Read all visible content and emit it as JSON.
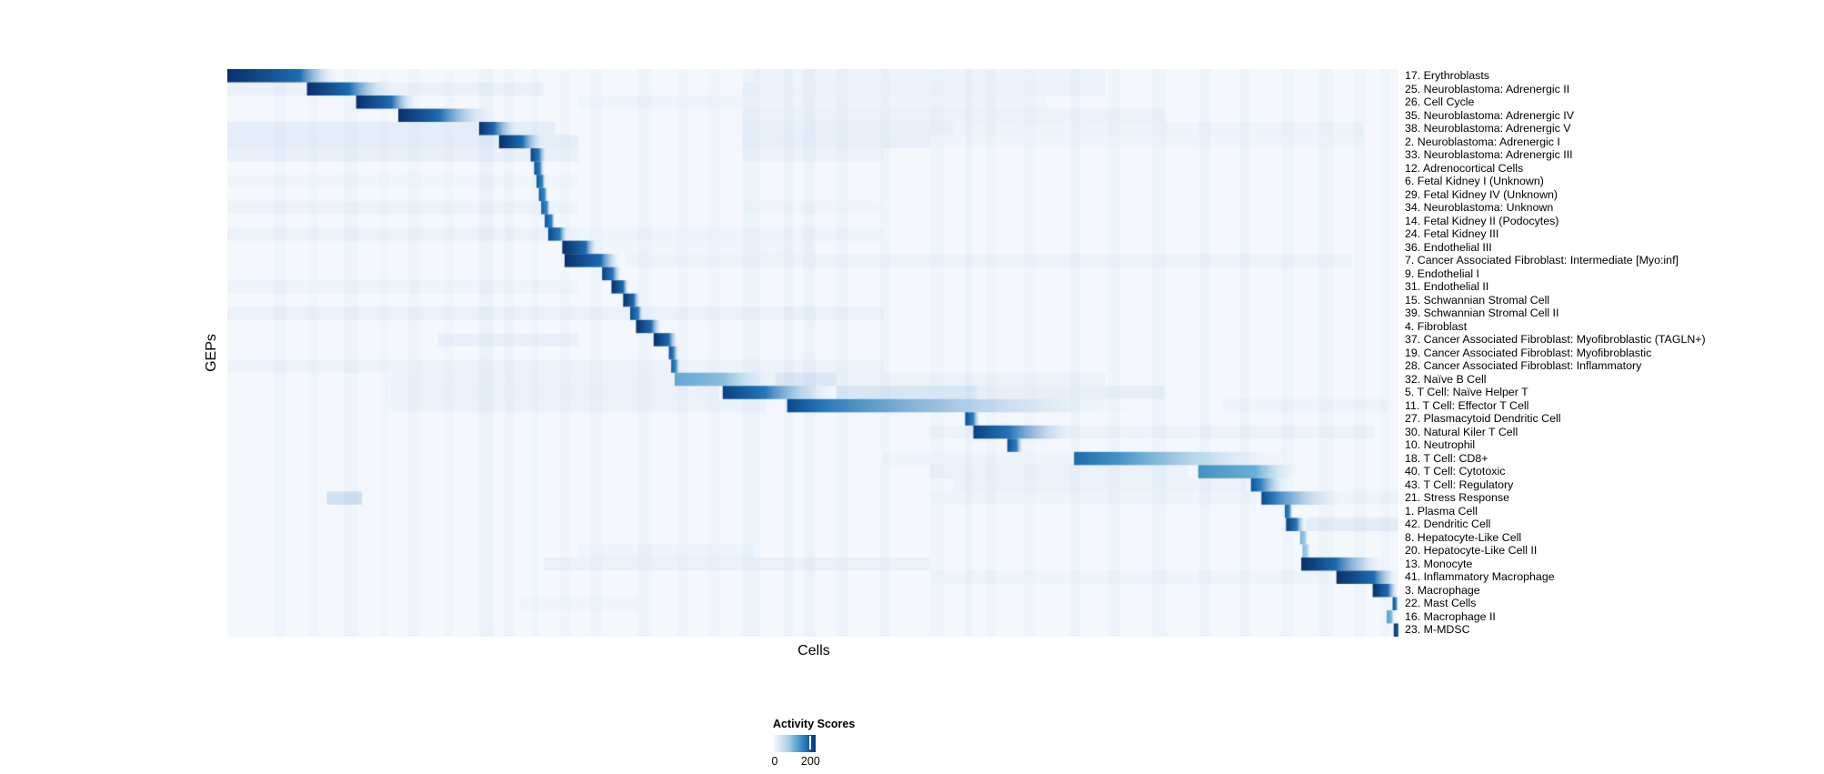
{
  "legend": {
    "title": "Activity Scores",
    "min_label": "0",
    "max_label": "200",
    "tick_fraction": 0.88
  },
  "chart_data": {
    "type": "heatmap",
    "title": "",
    "xlabel": "Cells",
    "ylabel": "GEPs",
    "value_name": "Activity Scores",
    "colorbar": {
      "title": "Activity Scores",
      "min": 0,
      "max": 200,
      "ticks": [
        0,
        200
      ]
    },
    "colormap": "Blues",
    "colormap_stops": [
      [
        0.0,
        "#f7fbff"
      ],
      [
        0.13,
        "#deebf7"
      ],
      [
        0.26,
        "#c6dbef"
      ],
      [
        0.39,
        "#9ecae1"
      ],
      [
        0.52,
        "#6baed6"
      ],
      [
        0.65,
        "#4292c6"
      ],
      [
        0.78,
        "#2171b5"
      ],
      [
        0.9,
        "#08519c"
      ],
      [
        1.0,
        "#08306b"
      ]
    ],
    "colors": {
      "background": "#f4f8fd",
      "band": "#8fb8dd",
      "haze": "#7caad7",
      "darkest": "#08306b"
    },
    "layout": {
      "grid": false,
      "legend_position": "bottom",
      "x_ticks_visible": false,
      "y_ticks_visible": false
    },
    "background_bands": [
      [
        0.04,
        0.01,
        0.05
      ],
      [
        0.07,
        0.008,
        0.04
      ],
      [
        0.1,
        0.012,
        0.06
      ],
      [
        0.13,
        0.008,
        0.04
      ],
      [
        0.155,
        0.01,
        0.05
      ],
      [
        0.185,
        0.008,
        0.04
      ],
      [
        0.215,
        0.012,
        0.09
      ],
      [
        0.237,
        0.008,
        0.06
      ],
      [
        0.26,
        0.006,
        0.05
      ],
      [
        0.285,
        0.008,
        0.04
      ],
      [
        0.31,
        0.01,
        0.04
      ],
      [
        0.35,
        0.012,
        0.05
      ],
      [
        0.385,
        0.008,
        0.04
      ],
      [
        0.41,
        0.01,
        0.04
      ],
      [
        0.44,
        0.015,
        0.06
      ],
      [
        0.475,
        0.008,
        0.07
      ],
      [
        0.492,
        0.01,
        0.09
      ],
      [
        0.52,
        0.01,
        0.05
      ],
      [
        0.558,
        0.008,
        0.05
      ],
      [
        0.6,
        0.012,
        0.04
      ],
      [
        0.63,
        0.006,
        0.07
      ],
      [
        0.648,
        0.008,
        0.05
      ],
      [
        0.68,
        0.01,
        0.04
      ],
      [
        0.72,
        0.008,
        0.06
      ],
      [
        0.752,
        0.01,
        0.05
      ],
      [
        0.79,
        0.012,
        0.05
      ],
      [
        0.83,
        0.01,
        0.06
      ],
      [
        0.865,
        0.008,
        0.06
      ],
      [
        0.9,
        0.01,
        0.05
      ],
      [
        0.932,
        0.012,
        0.05
      ],
      [
        0.962,
        0.01,
        0.05
      ],
      [
        0.985,
        0.008,
        0.05
      ]
    ],
    "rows": [
      {
        "label": "17. Erythroblasts",
        "b": [
          0.0,
          0.062,
          0.095,
          1.0
        ],
        "h": [
          [
            0.45,
            0.75,
            0.05
          ]
        ]
      },
      {
        "label": "25. Neuroblastoma: Adrenergic II",
        "b": [
          0.068,
          0.104,
          0.14,
          1.0
        ],
        "h": [
          [
            0.0,
            0.27,
            0.08
          ],
          [
            0.44,
            0.75,
            0.06
          ]
        ]
      },
      {
        "label": "26. Cell Cycle",
        "b": [
          0.11,
          0.14,
          0.162,
          1.0
        ],
        "h": [
          [
            0.3,
            0.7,
            0.05
          ]
        ]
      },
      {
        "label": "35. Neuroblastoma: Adrenergic IV",
        "b": [
          0.146,
          0.181,
          0.228,
          1.0
        ],
        "h": [
          [
            0.44,
            0.8,
            0.07
          ]
        ]
      },
      {
        "label": "38. Neuroblastoma: Adrenergic V",
        "b": [
          0.215,
          0.228,
          0.248,
          1.0
        ],
        "h": [
          [
            0.0,
            0.28,
            0.12
          ],
          [
            0.44,
            0.62,
            0.09
          ],
          [
            0.62,
            0.97,
            0.05
          ]
        ]
      },
      {
        "label": "2. Neuroblastoma: Adrenergic I",
        "b": [
          0.232,
          0.252,
          0.27,
          1.0
        ],
        "h": [
          [
            0.0,
            0.3,
            0.13
          ],
          [
            0.44,
            0.6,
            0.1
          ],
          [
            0.6,
            0.97,
            0.04
          ]
        ]
      },
      {
        "label": "33. Neuroblastoma: Adrenergic III",
        "b": [
          0.259,
          0.266,
          0.273,
          0.95
        ],
        "h": [
          [
            0.0,
            0.3,
            0.09
          ],
          [
            0.44,
            0.56,
            0.06
          ]
        ]
      },
      {
        "label": "12. Adrenocortical Cells",
        "b": [
          0.262,
          0.267,
          0.271,
          0.9
        ],
        "h": []
      },
      {
        "label": "6. Fetal Kidney I (Unknown)",
        "b": [
          0.264,
          0.269,
          0.272,
          0.88
        ],
        "h": [
          [
            0.0,
            0.3,
            0.04
          ]
        ]
      },
      {
        "label": "29. Fetal Kidney IV (Unknown)",
        "b": [
          0.266,
          0.271,
          0.274,
          0.85
        ],
        "h": []
      },
      {
        "label": "34. Neuroblastoma: Unknown",
        "b": [
          0.268,
          0.273,
          0.276,
          0.85
        ],
        "h": [
          [
            0.0,
            0.3,
            0.06
          ],
          [
            0.44,
            0.56,
            0.04
          ]
        ]
      },
      {
        "label": "14. Fetal Kidney II (Podocytes)",
        "b": [
          0.271,
          0.277,
          0.28,
          0.88
        ],
        "h": []
      },
      {
        "label": "24. Fetal Kidney III",
        "b": [
          0.274,
          0.284,
          0.291,
          0.92
        ],
        "h": [
          [
            0.0,
            0.3,
            0.07
          ],
          [
            0.3,
            0.56,
            0.05
          ]
        ]
      },
      {
        "label": "36. Endothelial III",
        "b": [
          0.286,
          0.306,
          0.316,
          1.0
        ],
        "h": [
          [
            0.3,
            0.5,
            0.04
          ]
        ]
      },
      {
        "label": "7. Cancer Associated Fibroblast: Intermediate [Myo:inf]",
        "b": [
          0.288,
          0.319,
          0.336,
          1.0
        ],
        "h": [
          [
            0.34,
            0.96,
            0.06
          ]
        ]
      },
      {
        "label": "9. Endothelial I",
        "b": [
          0.32,
          0.329,
          0.337,
          0.95
        ],
        "h": []
      },
      {
        "label": "31. Endothelial II",
        "b": [
          0.328,
          0.338,
          0.343,
          1.0
        ],
        "h": [
          [
            0.0,
            0.3,
            0.05
          ]
        ]
      },
      {
        "label": "15. Schwannian Stromal Cell",
        "b": [
          0.338,
          0.347,
          0.353,
          1.0
        ],
        "h": []
      },
      {
        "label": "39. Schwannian Stromal Cell II",
        "b": [
          0.344,
          0.351,
          0.355,
          0.92
        ],
        "h": [
          [
            0.0,
            0.56,
            0.08
          ]
        ]
      },
      {
        "label": "4. Fibroblast",
        "b": [
          0.349,
          0.362,
          0.371,
          1.0
        ],
        "h": []
      },
      {
        "label": "37. Cancer Associated Fibroblast: Myofibroblastic (TAGLN+)",
        "b": [
          0.364,
          0.377,
          0.385,
          1.0
        ],
        "h": [
          [
            0.18,
            0.3,
            0.09
          ]
        ]
      },
      {
        "label": "19. Cancer Associated Fibroblast: Myofibroblastic",
        "b": [
          0.377,
          0.381,
          0.386,
          0.9
        ],
        "h": []
      },
      {
        "label": "28. Cancer Associated Fibroblast: Inflammatory",
        "b": [
          0.379,
          0.383,
          0.387,
          0.85
        ],
        "h": [
          [
            0.0,
            0.56,
            0.06
          ]
        ]
      },
      {
        "label": "32. Naïve B Cell",
        "b": [
          0.382,
          0.424,
          0.468,
          0.55
        ],
        "h": [
          [
            0.14,
            0.75,
            0.07
          ],
          [
            0.468,
            0.52,
            0.15
          ]
        ]
      },
      {
        "label": "5. T Cell: Naïve Helper T",
        "b": [
          0.423,
          0.459,
          0.523,
          0.95
        ],
        "h": [
          [
            0.52,
            0.64,
            0.22
          ],
          [
            0.64,
            0.8,
            0.1
          ],
          [
            0.14,
            0.42,
            0.08
          ]
        ]
      },
      {
        "label": "11. T Cell: Effector T Cell",
        "b": [
          0.478,
          0.512,
          0.79,
          0.92
        ],
        "h": [
          [
            0.14,
            0.46,
            0.07
          ],
          [
            0.85,
            0.99,
            0.05
          ]
        ]
      },
      {
        "label": "27. Plasmacytoid Dendritic Cell",
        "b": [
          0.63,
          0.637,
          0.643,
          0.9
        ],
        "h": []
      },
      {
        "label": "30. Natural Kiler T Cell",
        "b": [
          0.637,
          0.668,
          0.727,
          0.95
        ],
        "h": [
          [
            0.6,
            0.98,
            0.07
          ]
        ]
      },
      {
        "label": "10. Neutrophil",
        "b": [
          0.666,
          0.674,
          0.68,
          0.9
        ],
        "h": []
      },
      {
        "label": "18. T Cell: CD8+",
        "b": [
          0.723,
          0.762,
          0.912,
          0.8
        ],
        "h": [
          [
            0.56,
            0.72,
            0.05
          ]
        ]
      },
      {
        "label": "40. T Cell: Cytotoxic",
        "b": [
          0.829,
          0.878,
          0.916,
          0.65
        ],
        "h": [
          [
            0.6,
            0.82,
            0.08
          ]
        ]
      },
      {
        "label": "43. T Cell: Regulatory",
        "b": [
          0.874,
          0.883,
          0.906,
          0.88
        ],
        "h": [
          [
            0.62,
            0.87,
            0.07
          ]
        ]
      },
      {
        "label": "21. Stress Response",
        "b": [
          0.883,
          0.894,
          0.952,
          0.92
        ],
        "h": [
          [
            0.085,
            0.115,
            0.3
          ],
          [
            0.6,
            1.0,
            0.05
          ]
        ]
      },
      {
        "label": "1. Plasma Cell",
        "b": [
          0.903,
          0.907,
          0.91,
          0.85
        ],
        "h": []
      },
      {
        "label": "42. Dendritic Cell",
        "b": [
          0.904,
          0.913,
          0.921,
          0.95
        ],
        "h": [
          [
            0.921,
            1.0,
            0.14
          ]
        ]
      },
      {
        "label": "8. Hepatocyte-Like Cell",
        "b": [
          0.916,
          0.92,
          0.923,
          0.5
        ],
        "h": []
      },
      {
        "label": "20. Hepatocyte-Like Cell II",
        "b": [
          0.918,
          0.922,
          0.925,
          0.45
        ],
        "h": [
          [
            0.3,
            0.45,
            0.05
          ]
        ]
      },
      {
        "label": "13. Monocyte",
        "b": [
          0.917,
          0.947,
          0.99,
          1.0
        ],
        "h": [
          [
            0.27,
            0.6,
            0.07
          ]
        ]
      },
      {
        "label": "41. Inflammatory Macrophage",
        "b": [
          0.947,
          0.979,
          1.0,
          1.0
        ],
        "h": [
          [
            0.6,
            0.94,
            0.05
          ]
        ]
      },
      {
        "label": "3. Macrophage",
        "b": [
          0.978,
          0.991,
          1.0,
          1.0
        ],
        "h": []
      },
      {
        "label": "22. Mast Cells",
        "b": [
          0.995,
          0.998,
          1.0,
          0.9
        ],
        "h": [
          [
            0.25,
            0.35,
            0.04
          ]
        ]
      },
      {
        "label": "16. Macrophage II",
        "b": [
          0.99,
          0.994,
          0.997,
          0.6
        ],
        "h": []
      },
      {
        "label": "23. M-MDSC",
        "b": [
          0.996,
          1.0,
          1.0,
          1.0
        ],
        "h": []
      }
    ]
  }
}
